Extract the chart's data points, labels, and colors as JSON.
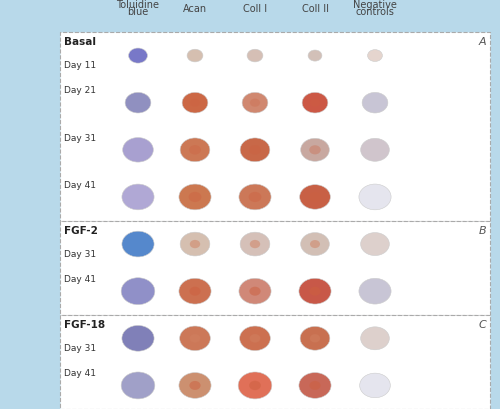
{
  "background_color": "#b8d9ea",
  "panel_bg": "#ffffff",
  "panel_border_color": "#999999",
  "panel_border_style": "dashed",
  "fig_width": 5.0,
  "fig_height": 4.09,
  "col_headers": [
    "Toluidine\nblue",
    "Acan",
    "Coll I",
    "Coll II",
    "Negative\ncontrols"
  ],
  "col_header_fontsize": 7.0,
  "sections": [
    {
      "label": "Basal",
      "panel_label": "A",
      "rows": [
        {
          "day": "Day 11"
        },
        {
          "day": "Day 21"
        },
        {
          "day": "Day 31"
        },
        {
          "day": "Day 41"
        }
      ]
    },
    {
      "label": "FGF-2",
      "panel_label": "B",
      "rows": [
        {
          "day": "Day 31"
        },
        {
          "day": "Day 41"
        }
      ]
    },
    {
      "label": "FGF-18",
      "panel_label": "C",
      "rows": [
        {
          "day": "Day 31"
        },
        {
          "day": "Day 41"
        }
      ]
    }
  ],
  "row_label_fontsize": 6.5,
  "section_label_fontsize": 7.5,
  "panel_label_fontsize": 8,
  "pellet_colors": {
    "toluidine": {
      "Day 11": {
        "fill": "#8080cc",
        "size": 0.45
      },
      "Day 21": {
        "fill": "#9090cc",
        "size": 0.65
      },
      "Day 31_basal": {
        "fill": "#a0a0d8",
        "size": 0.8
      },
      "Day 41_basal": {
        "fill": "#b0b0dd",
        "size": 0.85
      },
      "Day 31_fgf2": {
        "fill": "#6699cc",
        "size": 0.85
      },
      "Day 41_fgf2": {
        "fill": "#9999cc",
        "size": 0.85
      },
      "Day 31_fgf18": {
        "fill": "#8888bb",
        "size": 0.85
      },
      "Day 41_fgf18": {
        "fill": "#aaaacc",
        "size": 0.85
      }
    }
  },
  "cell_colors_by_section_row_col": {
    "Basal": {
      "0": [
        "#8080cc",
        "#d8b8a8",
        "#d8b8b0",
        "#d0b8b0",
        "#e8d8d0"
      ],
      "1": [
        "#9898cc",
        "#cc7050",
        "#d09080",
        "#cc6050",
        "#c8c8d8"
      ],
      "2": [
        "#b0a8d8",
        "#cc8060",
        "#c87050",
        "#c8b0a8",
        "#d0c8d0"
      ],
      "3": [
        "#b8b0d8",
        "#cc8058",
        "#cc8060",
        "#c86850",
        "#e8e8f0"
      ]
    },
    "FGF-2": {
      "0": [
        "#6699cc",
        "#d8c0b0",
        "#d8c0b8",
        "#d0c0b8",
        "#e0d0d0"
      ],
      "1": [
        "#9999cc",
        "#cc7858",
        "#d09080",
        "#c86050",
        "#c8c8d8"
      ]
    },
    "FGF-18": {
      "0": [
        "#8888bb",
        "#cc8060",
        "#cc7858",
        "#c87858",
        "#e0d0d0"
      ],
      "1": [
        "#aaaacc",
        "#cc9878",
        "#e07860",
        "#c87060",
        "#e8e8f0"
      ]
    }
  }
}
